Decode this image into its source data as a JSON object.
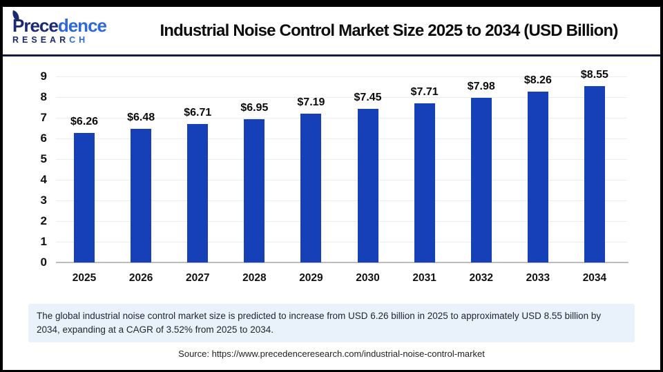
{
  "header": {
    "logo": {
      "line1_dark": "Prece",
      "line1_light": "dence",
      "line2_dark": "RESEAR",
      "line2_light": "CH"
    },
    "title": "Industrial Noise Control Market Size 2025 to 2034 (USD Billion)"
  },
  "chart_data": {
    "type": "bar",
    "title": "Industrial Noise Control Market Size 2025 to 2034 (USD Billion)",
    "categories": [
      "2025",
      "2026",
      "2027",
      "2028",
      "2029",
      "2030",
      "2031",
      "2032",
      "2033",
      "2034"
    ],
    "values": [
      6.26,
      6.48,
      6.71,
      6.95,
      7.19,
      7.45,
      7.71,
      7.98,
      8.26,
      8.55
    ],
    "data_labels": [
      "$6.26",
      "$6.48",
      "$6.71",
      "$6.95",
      "$7.19",
      "$7.45",
      "$7.71",
      "$7.98",
      "$8.26",
      "$8.55"
    ],
    "unit": "USD Billion",
    "ylim": [
      0,
      9
    ],
    "yticks": [
      0,
      1,
      2,
      3,
      4,
      5,
      6,
      7,
      8,
      9
    ],
    "grid": true,
    "legend": "none",
    "bar_color": "#1540b8"
  },
  "note": {
    "text": "The global industrial noise control market size is predicted to increase from USD 6.26 billion in 2025 to approximately USD 8.55 billion by 2034, expanding at a CAGR of 3.52% from 2025 to 2034."
  },
  "source": {
    "text": "Source: https://www.precedenceresearch.com/industrial-noise-control-market"
  },
  "colors": {
    "bar": "#1540b8",
    "divider": "#131a45",
    "note_background": "#e9f1fa",
    "logo_dark": "#1b2a70",
    "logo_light": "#2e68d9"
  }
}
